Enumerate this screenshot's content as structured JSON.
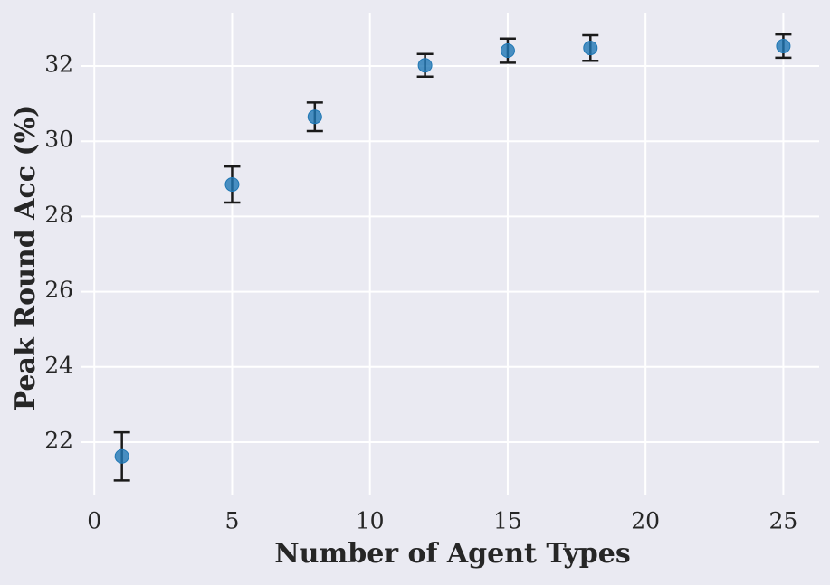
{
  "chart_data": {
    "type": "scatter",
    "x_label": "Number of Agent Types",
    "y_label": "Peak Round Acc (%)",
    "x": [
      1,
      5,
      8,
      12,
      15,
      18,
      25
    ],
    "values": [
      21.62,
      28.85,
      30.65,
      32.02,
      32.41,
      32.48,
      32.53
    ],
    "errors": [
      0.64,
      0.48,
      0.38,
      0.3,
      0.32,
      0.34,
      0.31
    ],
    "color": "#1f77b4",
    "xlim": [
      -0.5,
      26.3
    ],
    "xticks": [
      0,
      5,
      10,
      15,
      20,
      25
    ],
    "ylim": [
      20.58,
      33.42
    ],
    "yticks": [
      22,
      24,
      26,
      28,
      30,
      32
    ],
    "grid": true
  }
}
